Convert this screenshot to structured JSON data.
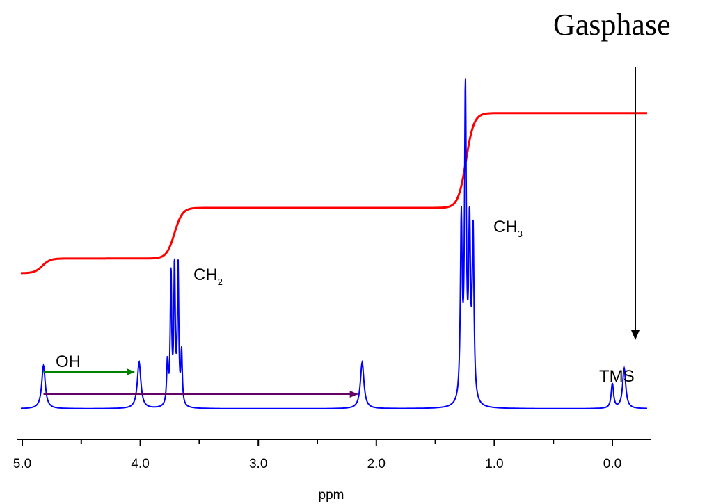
{
  "chart_data": {
    "type": "line",
    "title": "",
    "xlabel": "ppm",
    "ylabel": "",
    "x_reversed": true,
    "xlim": [
      5.05,
      -0.2
    ],
    "xticks": [
      5.0,
      4.0,
      3.0,
      2.0,
      1.0,
      0.0
    ],
    "xtick_labels": [
      "5.0",
      "4.0",
      "3.0",
      "2.0",
      "1.0",
      "0.0"
    ],
    "grid": false,
    "legend": "none",
    "series": [
      {
        "kind": "spectrum",
        "color": "#0000ff",
        "baseline": 0,
        "peaks": [
          {
            "x": 4.82,
            "height": 0.14,
            "width": 0.018
          },
          {
            "x": 4.01,
            "height": 0.15,
            "width": 0.018
          },
          {
            "x": 3.77,
            "height": 0.14,
            "width": 0.008
          },
          {
            "x": 3.74,
            "height": 0.43,
            "width": 0.007
          },
          {
            "x": 3.71,
            "height": 0.45,
            "width": 0.007
          },
          {
            "x": 3.68,
            "height": 0.45,
            "width": 0.007
          },
          {
            "x": 3.65,
            "height": 0.17,
            "width": 0.007
          },
          {
            "x": 2.12,
            "height": 0.15,
            "width": 0.018
          },
          {
            "x": 1.28,
            "height": 0.58,
            "width": 0.009
          },
          {
            "x": 1.245,
            "height": 1.0,
            "width": 0.009
          },
          {
            "x": 1.21,
            "height": 0.55,
            "width": 0.009
          },
          {
            "x": 1.18,
            "height": 0.55,
            "width": 0.009
          },
          {
            "x": 0.0,
            "height": 0.08,
            "width": 0.012
          },
          {
            "x": -0.1,
            "height": 0.13,
            "width": 0.016
          }
        ]
      },
      {
        "kind": "integral",
        "color": "#ff0000",
        "start_level": 0,
        "steps": [
          {
            "x": 4.83,
            "rise": 0.09
          },
          {
            "x": 3.71,
            "rise": 0.31
          },
          {
            "x": 1.24,
            "rise": 0.58
          }
        ]
      }
    ],
    "annotations": [
      {
        "text": "OH",
        "x": 4.72,
        "kind": "label"
      },
      {
        "text": "CH",
        "sub": "2",
        "x": 3.62,
        "kind": "label"
      },
      {
        "text": "CH",
        "sub": "3",
        "x": 1.16,
        "kind": "label"
      },
      {
        "text": "TMS",
        "x": 0.08,
        "kind": "label"
      },
      {
        "text": "Gasphase",
        "kind": "label"
      }
    ],
    "arrows": [
      {
        "from": 4.82,
        "to": 4.05,
        "color": "#008000"
      },
      {
        "from": 4.82,
        "to": 2.16,
        "color": "#660066"
      },
      {
        "x": -0.1,
        "direction": "down",
        "color": "#000000"
      }
    ]
  }
}
